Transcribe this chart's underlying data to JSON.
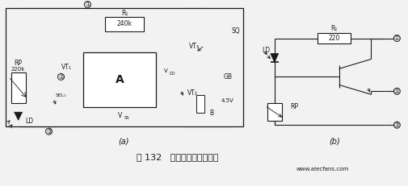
{
  "bg_color": "#f2f2f2",
  "line_color": "#1a1a1a",
  "fig_width": 5.06,
  "fig_height": 2.31,
  "title_text": "图 132   光控报警器电路之一",
  "subtitle_a": "(a)",
  "subtitle_b": "(b)",
  "watermark": "www.alecfans.com"
}
